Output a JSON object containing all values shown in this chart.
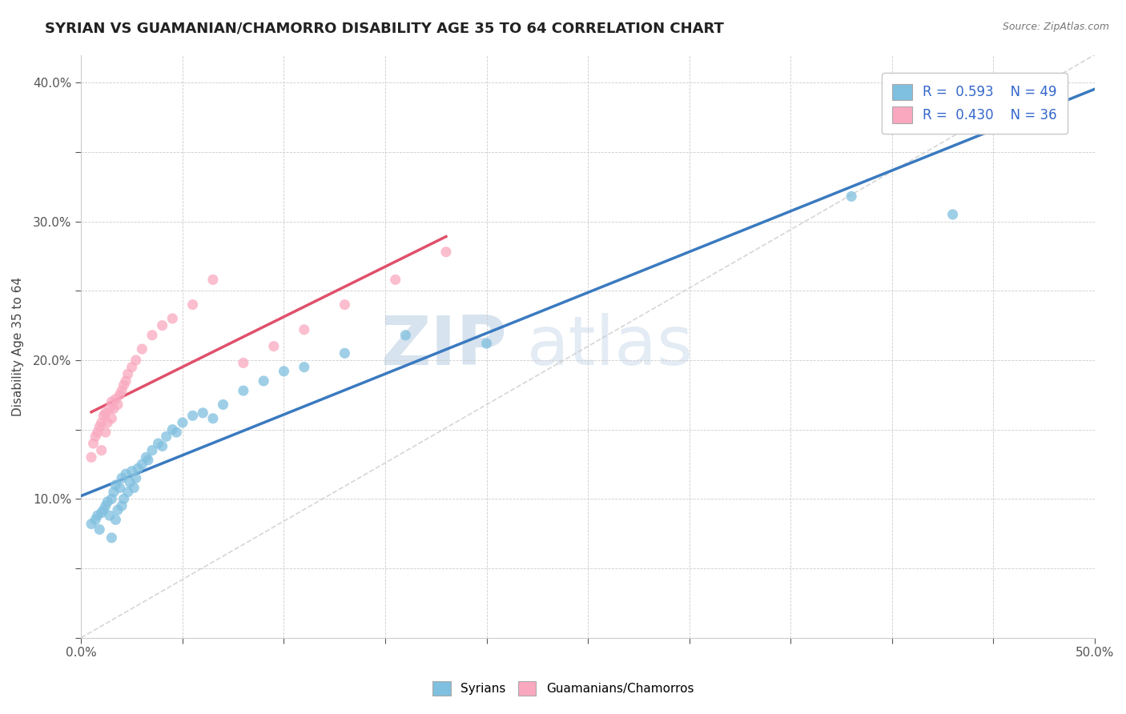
{
  "title": "SYRIAN VS GUAMANIAN/CHAMORRO DISABILITY AGE 35 TO 64 CORRELATION CHART",
  "source_text": "Source: ZipAtlas.com",
  "ylabel": "Disability Age 35 to 64",
  "xlim": [
    0.0,
    0.5
  ],
  "ylim": [
    0.0,
    0.42
  ],
  "blue_color": "#7fbfdf",
  "pink_color": "#f9a8c0",
  "blue_line_color": "#3a7abf",
  "pink_line_color": "#e0506a",
  "ref_line_color": "#cccccc",
  "legend_blue_label": "R =  0.593    N = 49",
  "legend_pink_label": "R =  0.430    N = 36",
  "legend_syrians": "Syrians",
  "legend_guamanians": "Guamanians/Chamorros",
  "watermark_zip": "ZIP",
  "watermark_atlas": "atlas",
  "title_fontsize": 13,
  "axis_label_fontsize": 11,
  "tick_fontsize": 11,
  "syrians_x": [
    0.005,
    0.007,
    0.008,
    0.009,
    0.01,
    0.011,
    0.012,
    0.013,
    0.014,
    0.015,
    0.015,
    0.016,
    0.017,
    0.017,
    0.018,
    0.019,
    0.02,
    0.02,
    0.021,
    0.022,
    0.023,
    0.024,
    0.025,
    0.026,
    0.027,
    0.028,
    0.03,
    0.032,
    0.033,
    0.035,
    0.038,
    0.04,
    0.042,
    0.045,
    0.047,
    0.05,
    0.055,
    0.06,
    0.065,
    0.07,
    0.08,
    0.09,
    0.1,
    0.11,
    0.13,
    0.16,
    0.2,
    0.38,
    0.43
  ],
  "syrians_y": [
    0.082,
    0.085,
    0.088,
    0.078,
    0.09,
    0.092,
    0.095,
    0.098,
    0.088,
    0.1,
    0.072,
    0.105,
    0.085,
    0.11,
    0.092,
    0.108,
    0.095,
    0.115,
    0.1,
    0.118,
    0.105,
    0.112,
    0.12,
    0.108,
    0.115,
    0.122,
    0.125,
    0.13,
    0.128,
    0.135,
    0.14,
    0.138,
    0.145,
    0.15,
    0.148,
    0.155,
    0.16,
    0.162,
    0.158,
    0.168,
    0.178,
    0.185,
    0.192,
    0.195,
    0.205,
    0.218,
    0.212,
    0.318,
    0.305
  ],
  "guamanians_x": [
    0.005,
    0.006,
    0.007,
    0.008,
    0.009,
    0.01,
    0.01,
    0.011,
    0.012,
    0.012,
    0.013,
    0.014,
    0.015,
    0.015,
    0.016,
    0.017,
    0.018,
    0.019,
    0.02,
    0.021,
    0.022,
    0.023,
    0.025,
    0.027,
    0.03,
    0.035,
    0.04,
    0.045,
    0.055,
    0.065,
    0.08,
    0.095,
    0.11,
    0.13,
    0.155,
    0.18
  ],
  "guamanians_y": [
    0.13,
    0.14,
    0.145,
    0.148,
    0.152,
    0.155,
    0.135,
    0.16,
    0.148,
    0.162,
    0.155,
    0.165,
    0.158,
    0.17,
    0.165,
    0.172,
    0.168,
    0.175,
    0.178,
    0.182,
    0.185,
    0.19,
    0.195,
    0.2,
    0.208,
    0.218,
    0.225,
    0.23,
    0.24,
    0.258,
    0.198,
    0.21,
    0.222,
    0.24,
    0.258,
    0.278
  ]
}
